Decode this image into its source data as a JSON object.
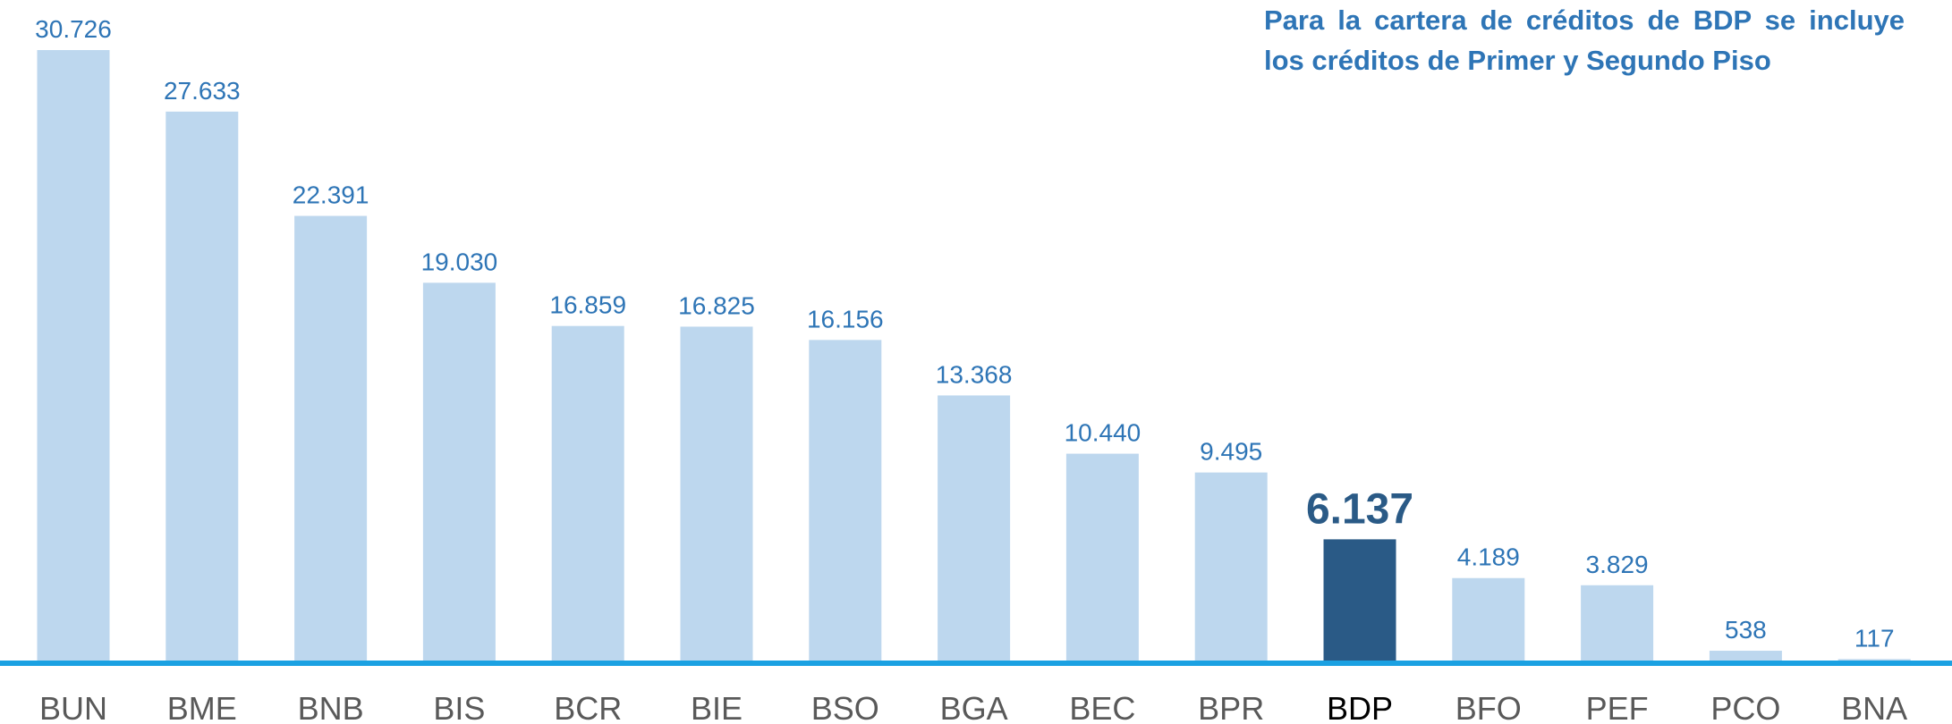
{
  "chart_data": {
    "type": "bar",
    "note": "Para la cartera de créditos de BDP se incluye los créditos de Primer y Segundo Piso",
    "categories": [
      "BUN",
      "BME",
      "BNB",
      "BIS",
      "BCR",
      "BIE",
      "BSO",
      "BGA",
      "BEC",
      "BPR",
      "BDP",
      "BFO",
      "PEF",
      "PCO",
      "BNA"
    ],
    "values": [
      30726,
      27633,
      22391,
      19030,
      16859,
      16825,
      16156,
      13368,
      10440,
      9495,
      6137,
      4189,
      3829,
      538,
      117
    ],
    "value_labels": [
      "30.726",
      "27.633",
      "22.391",
      "19.030",
      "16.859",
      "16.825",
      "16.156",
      "13.368",
      "10.440",
      "9.495",
      "6.137",
      "4.189",
      "3.829",
      "538",
      "117"
    ],
    "colors": [
      "#bdd7ee",
      "#bdd7ee",
      "#bdd7ee",
      "#bdd7ee",
      "#bdd7ee",
      "#bdd7ee",
      "#bdd7ee",
      "#bdd7ee",
      "#bdd7ee",
      "#bdd7ee",
      "#2a5a86",
      "#bdd7ee",
      "#bdd7ee",
      "#bdd7ee",
      "#bdd7ee"
    ]
  }
}
